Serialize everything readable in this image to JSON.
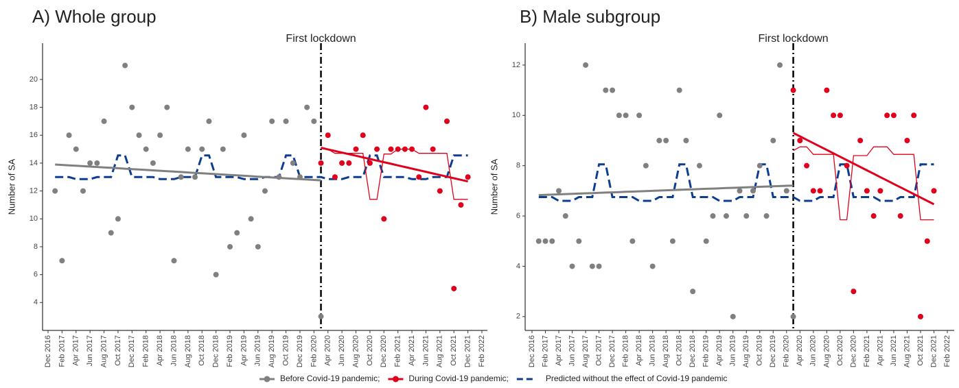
{
  "chart_data": [
    {
      "type": "line",
      "title": "A)  Whole group",
      "ylabel": "Number of SA",
      "annotation": "First lockdown",
      "categories": [
        "Dec 2016",
        null,
        "Feb 2017",
        null,
        "Apr 2017",
        null,
        "Jun 2017",
        null,
        "Aug 2017",
        null,
        "Oct 2017",
        null,
        "Dec 2017",
        null,
        "Feb 2018",
        null,
        "Apr 2018",
        null,
        "Jun 2018",
        null,
        "Aug 2018",
        null,
        "Oct 2018",
        null,
        "Dec 2018",
        null,
        "Feb 2019",
        null,
        "Apr 2019",
        null,
        "Jun 2019",
        null,
        "Aug 2019",
        null,
        "Oct 2019",
        null,
        "Dec 2019",
        null,
        "Feb 2020",
        null,
        "Apr 2020",
        null,
        "Jun 2020",
        null,
        "Aug 2020",
        null,
        "Oct 2020",
        null,
        "Dec 2020",
        null,
        "Feb 2021",
        null,
        "Apr 2021",
        null,
        "Jun 2021",
        null,
        "Aug 2021",
        null,
        "Oct 2021",
        null,
        "Dec 2021",
        null,
        "Feb 2022"
      ],
      "ylim": [
        2,
        22.6
      ],
      "yticks": [
        4,
        6,
        8,
        10,
        12,
        14,
        16,
        18,
        20
      ],
      "series": [
        {
          "name": "Before Covid-19 pandemic;",
          "style": "points",
          "color": "#808080",
          "values": [
            null,
            12,
            7,
            16,
            15,
            12,
            14,
            14,
            17,
            9,
            10,
            21,
            18,
            16,
            15,
            14,
            16,
            18,
            7,
            13,
            15,
            13,
            15,
            17,
            6,
            15,
            8,
            9,
            16,
            10,
            8,
            12,
            17,
            13,
            17,
            14,
            13,
            18,
            17,
            3,
            null,
            null,
            null,
            null,
            null,
            null,
            null,
            null,
            null,
            null,
            null,
            null,
            null,
            null,
            null,
            null,
            null,
            null,
            null,
            null,
            null,
            null,
            null
          ]
        },
        {
          "name": "During Covid-19 pandemic;",
          "style": "points",
          "color": "#e0001b",
          "values": [
            null,
            null,
            null,
            null,
            null,
            null,
            null,
            null,
            null,
            null,
            null,
            null,
            null,
            null,
            null,
            null,
            null,
            null,
            null,
            null,
            null,
            null,
            null,
            null,
            null,
            null,
            null,
            null,
            null,
            null,
            null,
            null,
            null,
            null,
            null,
            null,
            null,
            null,
            null,
            14,
            16,
            13,
            14,
            14,
            15,
            16,
            14,
            15,
            10,
            15,
            15,
            15,
            15,
            13,
            18,
            15,
            12,
            17,
            5,
            11,
            13,
            null,
            null
          ]
        },
        {
          "name": "Predicted without the effect of Covid-19 pandemic",
          "style": "dashed",
          "color": "#0b3d91",
          "values": [
            null,
            13,
            13,
            13,
            12.85,
            12.85,
            12.85,
            13,
            13,
            13,
            14.55,
            14.55,
            13,
            13,
            13,
            13,
            12.85,
            12.85,
            12.85,
            13,
            13,
            13,
            14.55,
            14.55,
            13,
            13,
            13,
            13,
            12.85,
            12.85,
            12.85,
            13,
            13,
            13,
            14.55,
            14.55,
            13,
            13,
            13,
            13,
            12.85,
            12.85,
            12.85,
            13,
            13,
            13,
            14.55,
            14.55,
            13,
            13,
            13,
            13,
            12.85,
            12.85,
            12.85,
            13,
            13,
            13,
            14.55,
            14.55,
            14.55,
            null,
            null
          ]
        },
        {
          "style": "trend",
          "color": "#808080",
          "values": [
            null,
            13.9,
            13.87,
            13.84,
            13.81,
            13.78,
            13.75,
            13.72,
            13.69,
            13.66,
            13.63,
            13.6,
            13.57,
            13.54,
            13.51,
            13.48,
            13.45,
            13.42,
            13.39,
            13.36,
            13.33,
            13.3,
            13.27,
            13.24,
            13.21,
            13.18,
            13.15,
            13.12,
            13.09,
            13.06,
            13.03,
            13,
            12.97,
            12.94,
            12.91,
            12.88,
            12.85,
            12.82,
            12.79,
            12.76,
            null,
            null,
            null,
            null,
            null,
            null,
            null,
            null,
            null,
            null,
            null,
            null,
            null,
            null,
            null,
            null,
            null,
            null,
            null,
            null,
            null,
            null,
            null
          ]
        },
        {
          "style": "thin",
          "color": "#e0001b",
          "values": [
            null,
            null,
            null,
            null,
            null,
            null,
            null,
            null,
            null,
            null,
            null,
            null,
            null,
            null,
            null,
            null,
            null,
            null,
            null,
            null,
            null,
            null,
            null,
            null,
            null,
            null,
            null,
            null,
            null,
            null,
            null,
            null,
            null,
            null,
            null,
            null,
            null,
            null,
            null,
            15.05,
            15,
            14.7,
            14.7,
            14.7,
            14.7,
            14.7,
            11.4,
            11.4,
            14.65,
            14.65,
            15,
            15,
            15,
            14.7,
            14.7,
            14.7,
            14.7,
            14.7,
            11.4,
            11.4,
            11.4,
            null,
            null
          ]
        },
        {
          "style": "trend",
          "color": "#e0001b",
          "values": [
            null,
            null,
            null,
            null,
            null,
            null,
            null,
            null,
            null,
            null,
            null,
            null,
            null,
            null,
            null,
            null,
            null,
            null,
            null,
            null,
            null,
            null,
            null,
            null,
            null,
            null,
            null,
            null,
            null,
            null,
            null,
            null,
            null,
            null,
            null,
            null,
            null,
            null,
            null,
            15.1,
            14.985,
            14.87,
            14.755,
            14.64,
            14.525,
            14.41,
            14.295,
            14.18,
            14.065,
            13.95,
            13.835,
            13.72,
            13.605,
            13.49,
            13.375,
            13.26,
            13.145,
            13.03,
            12.915,
            12.8,
            12.685,
            null,
            null
          ]
        }
      ]
    },
    {
      "type": "line",
      "title": "B)  Male subgroup",
      "ylabel": "Number of SA",
      "annotation": "First lockdown",
      "categories": [
        "Dec 2016",
        null,
        "Feb 2017",
        null,
        "Apr 2017",
        null,
        "Jun 2017",
        null,
        "Aug 2017",
        null,
        "Oct 2017",
        null,
        "Dec 2017",
        null,
        "Feb 2018",
        null,
        "Apr 2018",
        null,
        "Jun 2018",
        null,
        "Aug 2018",
        null,
        "Oct 2018",
        null,
        "Dec 2018",
        null,
        "Feb 2019",
        null,
        "Apr 2019",
        null,
        "Jun 2019",
        null,
        "Aug 2019",
        null,
        "Oct 2019",
        null,
        "Dec 2019",
        null,
        "Feb 2020",
        null,
        "Apr 2020",
        null,
        "Jun 2020",
        null,
        "Aug 2020",
        null,
        "Oct 2020",
        null,
        "Dec 2020",
        null,
        "Feb 2021",
        null,
        "Apr 2021",
        null,
        "Jun 2021",
        null,
        "Aug 2021",
        null,
        "Oct 2021",
        null,
        "Dec 2021",
        null,
        "Feb 2022"
      ],
      "ylim": [
        1.45,
        12.87
      ],
      "yticks": [
        2,
        4,
        6,
        8,
        10,
        12
      ],
      "series": [
        {
          "style": "points",
          "color": "#808080",
          "values": [
            null,
            5,
            5,
            5,
            7,
            6,
            4,
            5,
            12,
            4,
            4,
            11,
            11,
            10,
            10,
            5,
            10,
            8,
            4,
            9,
            9,
            5,
            11,
            9,
            3,
            8,
            5,
            6,
            10,
            6,
            2,
            7,
            6,
            7,
            8,
            6,
            9,
            12,
            7,
            2,
            null,
            null,
            null,
            null,
            null,
            null,
            null,
            null,
            null,
            null,
            null,
            null,
            null,
            null,
            null,
            null,
            null,
            null,
            null,
            null,
            null,
            null,
            null
          ]
        },
        {
          "style": "points",
          "color": "#e0001b",
          "values": [
            null,
            null,
            null,
            null,
            null,
            null,
            null,
            null,
            null,
            null,
            null,
            null,
            null,
            null,
            null,
            null,
            null,
            null,
            null,
            null,
            null,
            null,
            null,
            null,
            null,
            null,
            null,
            null,
            null,
            null,
            null,
            null,
            null,
            null,
            null,
            null,
            null,
            null,
            null,
            11,
            9,
            8,
            7,
            7,
            11,
            10,
            10,
            8,
            3,
            9,
            7,
            6,
            7,
            10,
            10,
            6,
            9,
            10,
            2,
            5,
            7,
            null,
            null
          ]
        },
        {
          "style": "dashed",
          "color": "#0b3d91",
          "values": [
            null,
            6.75,
            6.75,
            6.75,
            6.6,
            6.6,
            6.6,
            6.75,
            6.75,
            6.75,
            8.05,
            8.05,
            6.75,
            6.75,
            6.75,
            6.75,
            6.6,
            6.6,
            6.6,
            6.75,
            6.75,
            6.75,
            8.05,
            8.05,
            6.75,
            6.75,
            6.75,
            6.75,
            6.6,
            6.6,
            6.6,
            6.75,
            6.75,
            6.75,
            8.05,
            8.05,
            6.75,
            6.75,
            6.75,
            6.75,
            6.6,
            6.6,
            6.6,
            6.75,
            6.75,
            6.75,
            8.05,
            8.05,
            6.75,
            6.75,
            6.75,
            6.75,
            6.6,
            6.6,
            6.6,
            6.75,
            6.75,
            6.75,
            8.05,
            8.05,
            8.05,
            null,
            null
          ]
        },
        {
          "style": "trend",
          "color": "#808080",
          "values": [
            null,
            6.83,
            6.84,
            6.85,
            6.86,
            6.87,
            6.88,
            6.89,
            6.9,
            6.91,
            6.92,
            6.93,
            6.94,
            6.95,
            6.96,
            6.97,
            6.98,
            6.99,
            7,
            7.01,
            7.02,
            7.03,
            7.04,
            7.05,
            7.06,
            7.07,
            7.08,
            7.09,
            7.1,
            7.11,
            7.12,
            7.13,
            7.14,
            7.15,
            7.16,
            7.17,
            7.18,
            7.19,
            7.2,
            7.21,
            null,
            null,
            null,
            null,
            null,
            null,
            null,
            null,
            null,
            null,
            null,
            null,
            null,
            null,
            null,
            null,
            null,
            null,
            null,
            null,
            null,
            null,
            null
          ]
        },
        {
          "style": "thin",
          "color": "#e0001b",
          "values": [
            null,
            null,
            null,
            null,
            null,
            null,
            null,
            null,
            null,
            null,
            null,
            null,
            null,
            null,
            null,
            null,
            null,
            null,
            null,
            null,
            null,
            null,
            null,
            null,
            null,
            null,
            null,
            null,
            null,
            null,
            null,
            null,
            null,
            null,
            null,
            null,
            null,
            null,
            null,
            8.6,
            8.75,
            8.75,
            8.45,
            8.45,
            8.45,
            8.45,
            5.85,
            5.85,
            8.4,
            8.4,
            8.4,
            8.75,
            8.75,
            8.75,
            8.45,
            8.45,
            8.45,
            8.45,
            5.85,
            5.85,
            5.85,
            null,
            null
          ]
        },
        {
          "style": "trend",
          "color": "#e0001b",
          "values": [
            null,
            null,
            null,
            null,
            null,
            null,
            null,
            null,
            null,
            null,
            null,
            null,
            null,
            null,
            null,
            null,
            null,
            null,
            null,
            null,
            null,
            null,
            null,
            null,
            null,
            null,
            null,
            null,
            null,
            null,
            null,
            null,
            null,
            null,
            null,
            null,
            null,
            null,
            null,
            9.3,
            9.165,
            9.03,
            8.895,
            8.76,
            8.625,
            8.49,
            8.355,
            8.22,
            8.085,
            7.95,
            7.815,
            7.68,
            7.545,
            7.41,
            7.275,
            7.14,
            7.005,
            6.87,
            6.735,
            6.6,
            6.465,
            null,
            null
          ]
        }
      ]
    }
  ]
}
